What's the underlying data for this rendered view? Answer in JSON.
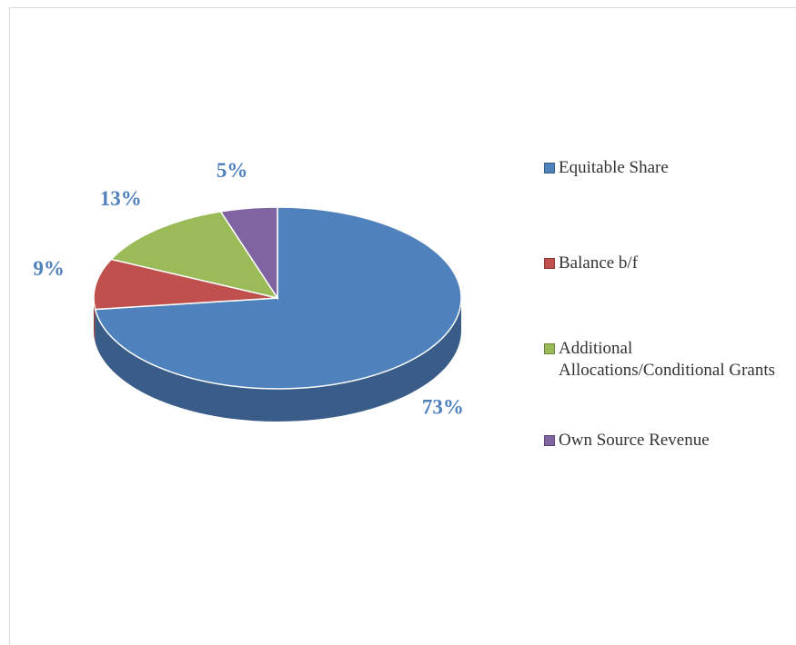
{
  "chart_data": {
    "type": "pie",
    "categories": [
      "Equitable Share",
      "Balance b/f",
      "Additional Allocations/Conditional Grants",
      "Own Source Revenue"
    ],
    "values": [
      73,
      9,
      13,
      5
    ],
    "value_labels": [
      "73%",
      "9%",
      "13%",
      "5%"
    ],
    "colors": [
      "#4f81bd",
      "#c0504d",
      "#9bbb59",
      "#8064a2"
    ],
    "legend": "right"
  }
}
